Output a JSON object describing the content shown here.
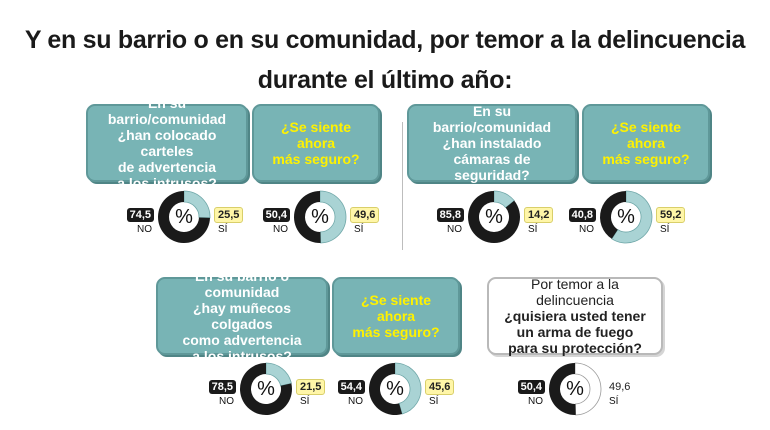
{
  "title": {
    "line1": "Y en su barrio o en su comunidad, por temor a la delincuencia",
    "line2": "durante el último año:"
  },
  "labels": {
    "no": "NO",
    "si": "SÍ",
    "pct_symbol": "%"
  },
  "colors": {
    "teal": "#78b4b5",
    "yes_fill": "#a9d3d4",
    "no_fill": "#1a1a1a",
    "question_text": "#ffffff",
    "followup_text": "#fff200"
  },
  "chart_data": [
    {
      "type": "pie",
      "question": [
        "En su barrio/comunidad",
        "¿han colocado carteles",
        "de advertencia",
        "a los intrusos?"
      ],
      "categories": [
        "NO",
        "SÍ"
      ],
      "values": [
        74.5,
        25.5
      ],
      "value_labels": [
        "74,5",
        "25,5"
      ]
    },
    {
      "type": "pie",
      "question": [
        "¿Se siente ahora",
        "más seguro?"
      ],
      "categories": [
        "NO",
        "SÍ"
      ],
      "values": [
        50.4,
        49.6
      ],
      "value_labels": [
        "50,4",
        "49,6"
      ]
    },
    {
      "type": "pie",
      "question": [
        "En su barrio/comunidad",
        "¿han instalado",
        "cámaras de seguridad?"
      ],
      "categories": [
        "NO",
        "SÍ"
      ],
      "values": [
        85.8,
        14.2
      ],
      "value_labels": [
        "85,8",
        "14,2"
      ]
    },
    {
      "type": "pie",
      "question": [
        "¿Se siente ahora",
        "más seguro?"
      ],
      "categories": [
        "NO",
        "SÍ"
      ],
      "values": [
        40.8,
        59.2
      ],
      "value_labels": [
        "40,8",
        "59,2"
      ]
    },
    {
      "type": "pie",
      "question": [
        "En su barrio o comunidad",
        "¿hay muñecos colgados",
        "como advertencia",
        "a los intrusos?"
      ],
      "categories": [
        "NO",
        "SÍ"
      ],
      "values": [
        78.5,
        21.5
      ],
      "value_labels": [
        "78,5",
        "21,5"
      ]
    },
    {
      "type": "pie",
      "question": [
        "¿Se siente ahora",
        "más seguro?"
      ],
      "categories": [
        "NO",
        "SÍ"
      ],
      "values": [
        54.4,
        45.6
      ],
      "value_labels": [
        "54,4",
        "45,6"
      ]
    },
    {
      "type": "pie",
      "question": [
        "Por temor a la delincuencia",
        "¿quisiera usted tener",
        "un arma de fuego",
        "para su protección?"
      ],
      "categories": [
        "NO",
        "SÍ"
      ],
      "values": [
        50.4,
        49.6
      ],
      "value_labels": [
        "50,4",
        "49,6"
      ]
    }
  ]
}
